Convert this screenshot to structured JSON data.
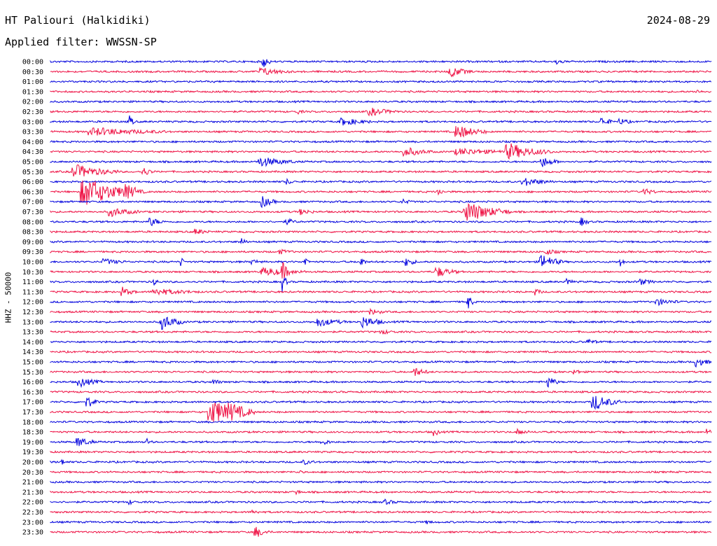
{
  "header": {
    "station": "HT Paliouri (Halkidiki)",
    "date": "2024-08-29",
    "filter": "Applied filter: WWSSN-SP"
  },
  "colors": {
    "even": "#0000dd",
    "odd": "#ee1144"
  },
  "chart_data": {
    "type": "line",
    "ylabel": "HHZ - 50000",
    "rows": [
      "00:00",
      "00:30",
      "01:00",
      "01:30",
      "02:00",
      "02:30",
      "03:00",
      "03:30",
      "04:00",
      "04:30",
      "05:00",
      "05:30",
      "06:00",
      "06:30",
      "07:00",
      "07:30",
      "08:00",
      "08:30",
      "09:00",
      "09:30",
      "10:00",
      "10:30",
      "11:00",
      "11:30",
      "12:00",
      "12:30",
      "13:00",
      "13:30",
      "14:00",
      "14:30",
      "15:00",
      "15:30",
      "16:00",
      "16:30",
      "17:00",
      "17:30",
      "18:00",
      "18:30",
      "19:00",
      "19:30",
      "20:00",
      "20:30",
      "21:00",
      "21:30",
      "22:00",
      "22:30",
      "23:00",
      "23:30"
    ],
    "row_minutes": 30,
    "grid": false
  }
}
